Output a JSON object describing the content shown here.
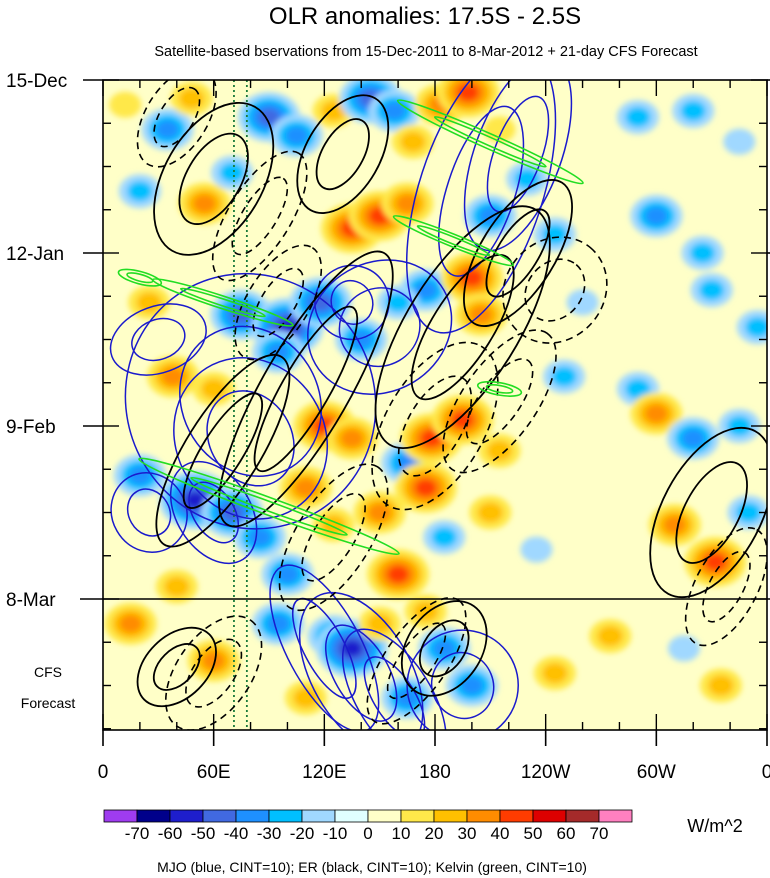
{
  "chart_data": {
    "type": "heatmap",
    "title": "OLR anomalies: 17.5S - 2.5S",
    "subtitle": "Satellite-based bservations from 15-Dec-2011 to 8-Mar-2012 + 21-day CFS Forecast",
    "x_ticks": [
      {
        "lon": 0,
        "label": "0"
      },
      {
        "lon": 60,
        "label": "60E"
      },
      {
        "lon": 120,
        "label": "120E"
      },
      {
        "lon": 180,
        "label": "180"
      },
      {
        "lon": 240,
        "label": "120W"
      },
      {
        "lon": 300,
        "label": "60W"
      },
      {
        "lon": 360,
        "label": "0"
      }
    ],
    "xlim": [
      0,
      360
    ],
    "y_ticks": [
      {
        "day": 0,
        "label": "15-Dec"
      },
      {
        "day": 28,
        "label": "12-Jan"
      },
      {
        "day": 56,
        "label": "9-Feb"
      },
      {
        "day": 84,
        "label": "8-Mar"
      }
    ],
    "ylim_days": [
      0,
      105
    ],
    "forecast_start_day": 84,
    "forecast_label": [
      "CFS",
      "Forecast"
    ],
    "colorbar": {
      "unit": "W/m^2",
      "labels": [
        "-70",
        "-60",
        "-50",
        "-40",
        "-30",
        "-20",
        "-10",
        "0",
        "10",
        "20",
        "30",
        "40",
        "50",
        "60",
        "70"
      ],
      "colors": [
        "#9f3cf0",
        "#00008b",
        "#1e1ecc",
        "#4169e1",
        "#1e90ff",
        "#00bfff",
        "#a0d8ff",
        "#e0ffff",
        "#ffffc8",
        "#ffe84a",
        "#ffc000",
        "#ff8c00",
        "#ff3c00",
        "#dd0000",
        "#a52a2a",
        "#ff80c0"
      ]
    },
    "footer": "MJO (blue, CINT=10); ER (black, CINT=10); Kelvin (green, CINT=10)",
    "contour_colors": {
      "mjo": "#1a1acc",
      "er": "#000000",
      "kelvin": "#22dd22"
    },
    "reference_lines_lon": [
      71,
      78
    ],
    "blobs": [
      {
        "lon": 12,
        "day": 4,
        "v": 18
      },
      {
        "lon": 35,
        "day": 8,
        "v": -30
      },
      {
        "lon": 48,
        "day": 3,
        "v": 25
      },
      {
        "lon": 90,
        "day": 6,
        "v": -45
      },
      {
        "lon": 105,
        "day": 9,
        "v": -35
      },
      {
        "lon": 125,
        "day": 5,
        "v": 20
      },
      {
        "lon": 145,
        "day": 3,
        "v": -40
      },
      {
        "lon": 158,
        "day": 5,
        "v": -30
      },
      {
        "lon": 183,
        "day": 4,
        "v": 35
      },
      {
        "lon": 198,
        "day": 2,
        "v": 45
      },
      {
        "lon": 168,
        "day": 10,
        "v": 25
      },
      {
        "lon": 215,
        "day": 8,
        "v": 15
      },
      {
        "lon": 290,
        "day": 6,
        "v": -20
      },
      {
        "lon": 320,
        "day": 5,
        "v": -25
      },
      {
        "lon": 345,
        "day": 10,
        "v": -15
      },
      {
        "lon": 20,
        "day": 18,
        "v": -25
      },
      {
        "lon": 55,
        "day": 20,
        "v": 30
      },
      {
        "lon": 70,
        "day": 15,
        "v": -20
      },
      {
        "lon": 135,
        "day": 24,
        "v": 40
      },
      {
        "lon": 150,
        "day": 22,
        "v": 45
      },
      {
        "lon": 165,
        "day": 20,
        "v": 30
      },
      {
        "lon": 210,
        "day": 22,
        "v": -30
      },
      {
        "lon": 245,
        "day": 25,
        "v": -25
      },
      {
        "lon": 300,
        "day": 22,
        "v": -30
      },
      {
        "lon": 325,
        "day": 28,
        "v": -20
      },
      {
        "lon": 230,
        "day": 16,
        "v": -20
      },
      {
        "lon": 25,
        "day": 36,
        "v": 25
      },
      {
        "lon": 75,
        "day": 38,
        "v": -40
      },
      {
        "lon": 100,
        "day": 40,
        "v": -55
      },
      {
        "lon": 118,
        "day": 36,
        "v": -40
      },
      {
        "lon": 140,
        "day": 42,
        "v": -35
      },
      {
        "lon": 175,
        "day": 34,
        "v": -30
      },
      {
        "lon": 200,
        "day": 32,
        "v": 40
      },
      {
        "lon": 205,
        "day": 38,
        "v": 30
      },
      {
        "lon": 260,
        "day": 36,
        "v": -15
      },
      {
        "lon": 330,
        "day": 34,
        "v": -25
      },
      {
        "lon": 355,
        "day": 40,
        "v": -20
      },
      {
        "lon": 160,
        "day": 36,
        "v": -25
      },
      {
        "lon": 38,
        "day": 48,
        "v": 30
      },
      {
        "lon": 60,
        "day": 50,
        "v": 20
      },
      {
        "lon": 95,
        "day": 44,
        "v": -30
      },
      {
        "lon": 120,
        "day": 56,
        "v": 40
      },
      {
        "lon": 135,
        "day": 58,
        "v": 30
      },
      {
        "lon": 165,
        "day": 62,
        "v": -30
      },
      {
        "lon": 178,
        "day": 58,
        "v": 45
      },
      {
        "lon": 195,
        "day": 55,
        "v": 40
      },
      {
        "lon": 215,
        "day": 60,
        "v": 25
      },
      {
        "lon": 290,
        "day": 50,
        "v": -20
      },
      {
        "lon": 300,
        "day": 54,
        "v": 30
      },
      {
        "lon": 320,
        "day": 58,
        "v": -30
      },
      {
        "lon": 345,
        "day": 56,
        "v": -20
      },
      {
        "lon": 250,
        "day": 48,
        "v": -20
      },
      {
        "lon": 20,
        "day": 64,
        "v": -30
      },
      {
        "lon": 50,
        "day": 68,
        "v": -50
      },
      {
        "lon": 70,
        "day": 70,
        "v": -45
      },
      {
        "lon": 85,
        "day": 74,
        "v": -30
      },
      {
        "lon": 110,
        "day": 66,
        "v": 30
      },
      {
        "lon": 125,
        "day": 72,
        "v": 25
      },
      {
        "lon": 150,
        "day": 70,
        "v": 30
      },
      {
        "lon": 175,
        "day": 66,
        "v": 40
      },
      {
        "lon": 185,
        "day": 74,
        "v": -25
      },
      {
        "lon": 210,
        "day": 70,
        "v": 20
      },
      {
        "lon": 235,
        "day": 76,
        "v": -15
      },
      {
        "lon": 310,
        "day": 72,
        "v": 30
      },
      {
        "lon": 332,
        "day": 78,
        "v": 45
      },
      {
        "lon": 350,
        "day": 70,
        "v": -25
      },
      {
        "lon": 160,
        "day": 80,
        "v": 40
      },
      {
        "lon": 100,
        "day": 80,
        "v": -30
      },
      {
        "lon": 40,
        "day": 82,
        "v": 25
      },
      {
        "lon": 15,
        "day": 88,
        "v": 30
      },
      {
        "lon": 60,
        "day": 94,
        "v": 35
      },
      {
        "lon": 95,
        "day": 88,
        "v": -30
      },
      {
        "lon": 125,
        "day": 90,
        "v": -35
      },
      {
        "lon": 135,
        "day": 92,
        "v": -50
      },
      {
        "lon": 165,
        "day": 100,
        "v": -30
      },
      {
        "lon": 185,
        "day": 92,
        "v": -30
      },
      {
        "lon": 200,
        "day": 98,
        "v": -35
      },
      {
        "lon": 175,
        "day": 86,
        "v": 25
      },
      {
        "lon": 245,
        "day": 96,
        "v": 20
      },
      {
        "lon": 275,
        "day": 90,
        "v": 25
      },
      {
        "lon": 315,
        "day": 92,
        "v": -15
      },
      {
        "lon": 335,
        "day": 98,
        "v": 20
      },
      {
        "lon": 110,
        "day": 100,
        "v": 25
      },
      {
        "lon": 150,
        "day": 88,
        "v": 20
      }
    ],
    "mjo_contours": [
      {
        "lon": 205,
        "day": 18,
        "rx": 80,
        "ry": 10,
        "rot": -72
      },
      {
        "lon": 225,
        "day": 12,
        "rx": 55,
        "ry": 7,
        "rot": -70
      },
      {
        "lon": 80,
        "day": 52,
        "rx": 70,
        "ry": 20,
        "rot": 58
      },
      {
        "lon": 80,
        "day": 58,
        "rx": 45,
        "ry": 12,
        "rot": 58
      },
      {
        "lon": 60,
        "day": 70,
        "rx": 30,
        "ry": 6,
        "rot": 58
      },
      {
        "lon": 150,
        "day": 40,
        "rx": 35,
        "ry": 12,
        "rot": 60
      },
      {
        "lon": 135,
        "day": 36,
        "rx": 20,
        "ry": 6,
        "rot": 60
      },
      {
        "lon": 120,
        "day": 92,
        "rx": 50,
        "ry": 6,
        "rot": 62
      },
      {
        "lon": 140,
        "day": 96,
        "rx": 48,
        "ry": 8,
        "rot": 60
      },
      {
        "lon": 158,
        "day": 100,
        "rx": 42,
        "ry": 6,
        "rot": 58
      },
      {
        "lon": 195,
        "day": 98,
        "rx": 30,
        "ry": 9,
        "rot": 68
      },
      {
        "lon": 30,
        "day": 42,
        "rx": 18,
        "ry": 8,
        "rot": 70
      },
      {
        "lon": 25,
        "day": 70,
        "rx": 22,
        "ry": 6,
        "rot": 60
      }
    ],
    "er_solid": [
      {
        "lon": 60,
        "day": 16,
        "rx": 45,
        "ry": 8,
        "rot": -60
      },
      {
        "lon": 110,
        "day": 50,
        "rx": 85,
        "ry": 7,
        "rot": -60
      },
      {
        "lon": 65,
        "day": 60,
        "rx": 60,
        "ry": 6,
        "rot": -58
      },
      {
        "lon": 195,
        "day": 40,
        "rx": 75,
        "ry": 9,
        "rot": -58
      },
      {
        "lon": 225,
        "day": 28,
        "rx": 45,
        "ry": 6,
        "rot": -58
      },
      {
        "lon": 330,
        "day": 70,
        "rx": 50,
        "ry": 8,
        "rot": -62
      },
      {
        "lon": 130,
        "day": 12,
        "rx": 35,
        "ry": 6,
        "rot": -60
      },
      {
        "lon": 40,
        "day": 95,
        "rx": 25,
        "ry": 5,
        "rot": -45
      },
      {
        "lon": 185,
        "day": 92,
        "rx": 28,
        "ry": 6,
        "rot": -55
      }
    ],
    "er_dashed": [
      {
        "lon": 40,
        "day": 6,
        "rx": 30,
        "ry": 5,
        "rot": -58
      },
      {
        "lon": 85,
        "day": 22,
        "rx": 40,
        "ry": 5,
        "rot": -58
      },
      {
        "lon": 215,
        "day": 52,
        "rx": 45,
        "ry": 6,
        "rot": -55
      },
      {
        "lon": 180,
        "day": 56,
        "rx": 50,
        "ry": 8,
        "rot": -60
      },
      {
        "lon": 125,
        "day": 74,
        "rx": 45,
        "ry": 6,
        "rot": -58
      },
      {
        "lon": 245,
        "day": 34,
        "rx": 30,
        "ry": 8,
        "rot": -50
      },
      {
        "lon": 170,
        "day": 94,
        "rx": 40,
        "ry": 5,
        "rot": -55
      },
      {
        "lon": 338,
        "day": 82,
        "rx": 35,
        "ry": 5,
        "rot": -62
      },
      {
        "lon": 60,
        "day": 96,
        "rx": 35,
        "ry": 6,
        "rot": -55
      },
      {
        "lon": 95,
        "day": 36,
        "rx": 35,
        "ry": 5,
        "rot": -58
      }
    ],
    "kelvin": [
      {
        "lon": 210,
        "day": 10,
        "rx": 55,
        "ry": 1.2,
        "rot": 24
      },
      {
        "lon": 190,
        "day": 26,
        "rx": 35,
        "ry": 1,
        "rot": 22
      },
      {
        "lon": 65,
        "day": 36,
        "rx": 40,
        "ry": 1,
        "rot": 18
      },
      {
        "lon": 90,
        "day": 69,
        "rx": 75,
        "ry": 1.4,
        "rot": 20
      },
      {
        "lon": 20,
        "day": 32,
        "rx": 12,
        "ry": 1,
        "rot": 15
      },
      {
        "lon": 215,
        "day": 50,
        "rx": 12,
        "ry": 1,
        "rot": 10
      }
    ]
  }
}
